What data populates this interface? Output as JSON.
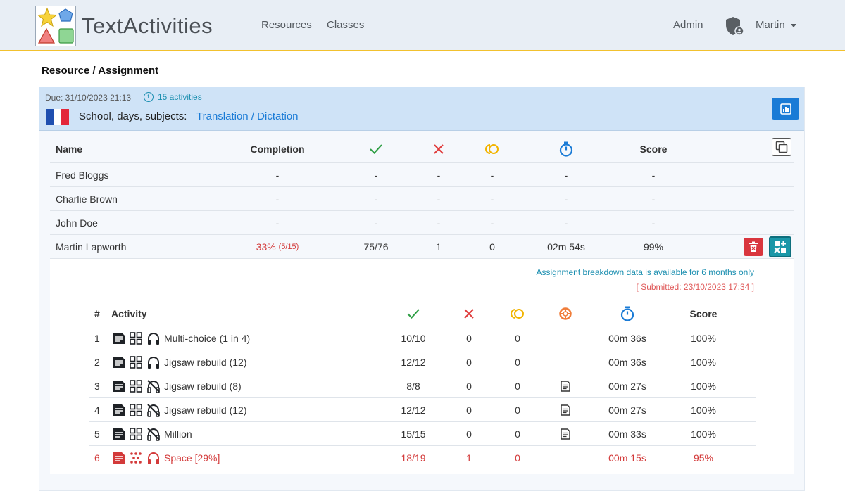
{
  "brand": {
    "name": "TextActivities"
  },
  "nav": {
    "resources": "Resources",
    "classes": "Classes",
    "admin": "Admin",
    "user": "Martin"
  },
  "breadcrumb": "Resource / Assignment",
  "assignment": {
    "due": "Due: 31/10/2023 21:13",
    "activities_link": "15 activities",
    "subject_label": "School, days, subjects:",
    "subject_link": "Translation / Dictation"
  },
  "main_table": {
    "headers": {
      "name": "Name",
      "completion": "Completion",
      "score": "Score"
    },
    "rows": [
      {
        "name": "Fred Bloggs",
        "completion": "-",
        "correct": "-",
        "wrong": "-",
        "hints": "-",
        "time": "-",
        "score": "-"
      },
      {
        "name": "Charlie Brown",
        "completion": "-",
        "correct": "-",
        "wrong": "-",
        "hints": "-",
        "time": "-",
        "score": "-"
      },
      {
        "name": "John Doe",
        "completion": "-",
        "correct": "-",
        "wrong": "-",
        "hints": "-",
        "time": "-",
        "score": "-"
      },
      {
        "name": "Martin Lapworth",
        "completion": "33%",
        "completion_detail": "(5/15)",
        "correct": "75/76",
        "wrong": "1",
        "hints": "0",
        "time": "02m 54s",
        "score": "99%"
      }
    ]
  },
  "breakdown": {
    "notice": "Assignment breakdown data is available for 6 months only",
    "submitted": "[ Submitted: 23/10/2023 17:34 ]",
    "headers": {
      "num": "#",
      "activity": "Activity",
      "score": "Score"
    },
    "rows": [
      {
        "num": "1",
        "activity": "Multi-choice (1 in 4)",
        "correct": "10/10",
        "wrong": "0",
        "hints": "0",
        "time": "00m 36s",
        "score": "100%",
        "audio": "headphones-icon",
        "mode": "grid-icon"
      },
      {
        "num": "2",
        "activity": "Jigsaw rebuild (12)",
        "correct": "12/12",
        "wrong": "0",
        "hints": "0",
        "time": "00m 36s",
        "score": "100%",
        "audio": "headphones-icon",
        "mode": "grid-icon"
      },
      {
        "num": "3",
        "activity": "Jigsaw rebuild (8)",
        "correct": "8/8",
        "wrong": "0",
        "hints": "0",
        "time": "00m 27s",
        "score": "100%",
        "audio": "headphones-off-icon",
        "mode": "grid-icon",
        "text_icon": true
      },
      {
        "num": "4",
        "activity": "Jigsaw rebuild (12)",
        "correct": "12/12",
        "wrong": "0",
        "hints": "0",
        "time": "00m 27s",
        "score": "100%",
        "audio": "headphones-off-icon",
        "mode": "grid-icon",
        "text_icon": true
      },
      {
        "num": "5",
        "activity": "Million",
        "correct": "15/15",
        "wrong": "0",
        "hints": "0",
        "time": "00m 33s",
        "score": "100%",
        "audio": "headphones-off-icon",
        "mode": "grid-icon",
        "text_icon": true
      },
      {
        "num": "6",
        "activity": "Space [29%]",
        "correct": "18/19",
        "wrong": "1",
        "hints": "0",
        "time": "00m 15s",
        "score": "95%",
        "audio": "headphones-icon",
        "mode": "dots-icon",
        "incomplete": true
      }
    ]
  },
  "colors": {
    "accent": "#1a7bd6",
    "correct": "#2e9e44",
    "wrong": "#e03b3b",
    "hint": "#f2b400",
    "timer": "#1a7bd6",
    "incomplete": "#d33a3a"
  }
}
